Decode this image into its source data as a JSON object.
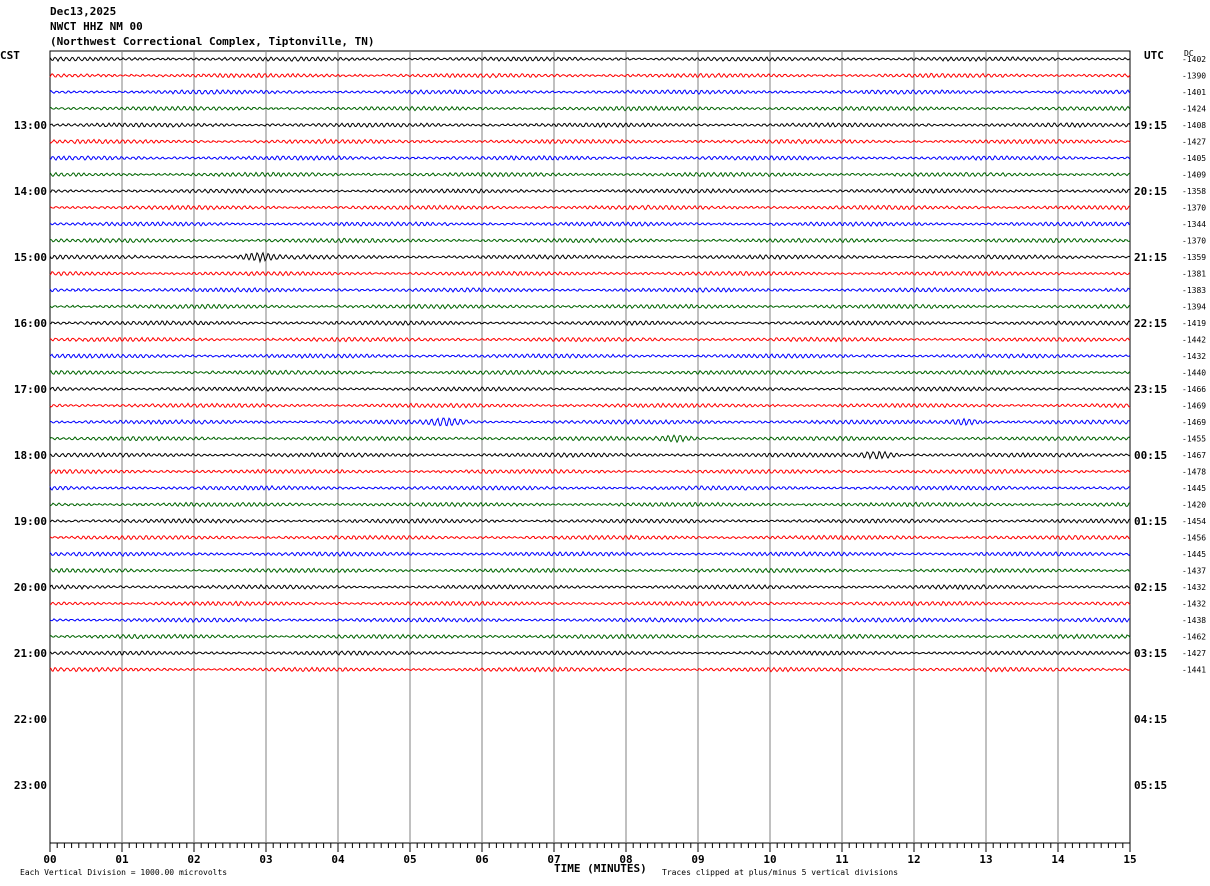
{
  "header": {
    "date": "Dec13,2025",
    "station": "NWCT HHZ NM 00",
    "location": "(Northwest Correctional Complex, Tiptonville, TN)"
  },
  "labels": {
    "left_zone": "CST",
    "right_zone": "UTC",
    "dc": "DC",
    "xlabel": "TIME (MINUTES)",
    "scale_note": "Each Vertical Division = 1000.00 microvolts",
    "clip_note": "Traces clipped at plus/minus 5 vertical divisions"
  },
  "colors": {
    "trace_cycle": [
      "#000000",
      "#ff0000",
      "#0000ff",
      "#006400"
    ],
    "grid": "#808080"
  },
  "chart_data": {
    "type": "line",
    "x_ticks": [
      "00",
      "01",
      "02",
      "03",
      "04",
      "05",
      "06",
      "07",
      "08",
      "09",
      "10",
      "11",
      "12",
      "13",
      "14",
      "15"
    ],
    "xlim": [
      0,
      15
    ],
    "left_time_labels": [
      "13:00",
      "14:00",
      "15:00",
      "16:00",
      "17:00",
      "18:00",
      "19:00",
      "20:00",
      "21:00",
      "22:00",
      "23:00"
    ],
    "right_time_labels": [
      "19:15",
      "20:15",
      "21:15",
      "22:15",
      "23:15",
      "00:15",
      "01:15",
      "02:15",
      "03:15",
      "04:15",
      "05:15"
    ],
    "total_rows": 48,
    "trace_dc_values": [
      "-1402",
      "-1390",
      "-1401",
      "-1424",
      "-1408",
      "-1427",
      "-1405",
      "-1409",
      "-1358",
      "-1370",
      "-1344",
      "-1370",
      "-1359",
      "-1381",
      "-1383",
      "-1394",
      "-1419",
      "-1442",
      "-1432",
      "-1440",
      "-1466",
      "-1469",
      "-1469",
      "-1455",
      "-1467",
      "-1478",
      "-1445",
      "-1420",
      "-1454",
      "-1456",
      "-1445",
      "-1437",
      "-1432",
      "-1432",
      "-1438",
      "-1462",
      "-1427",
      "-1441"
    ],
    "events": [
      {
        "row": 12,
        "minute": 2.9,
        "amp": 1.6
      },
      {
        "row": 22,
        "minute": 5.5,
        "amp": 1.4
      },
      {
        "row": 22,
        "minute": 12.7,
        "amp": 1.2
      },
      {
        "row": 23,
        "minute": 8.7,
        "amp": 1.2
      },
      {
        "row": 24,
        "minute": 11.5,
        "amp": 1.5
      }
    ]
  }
}
